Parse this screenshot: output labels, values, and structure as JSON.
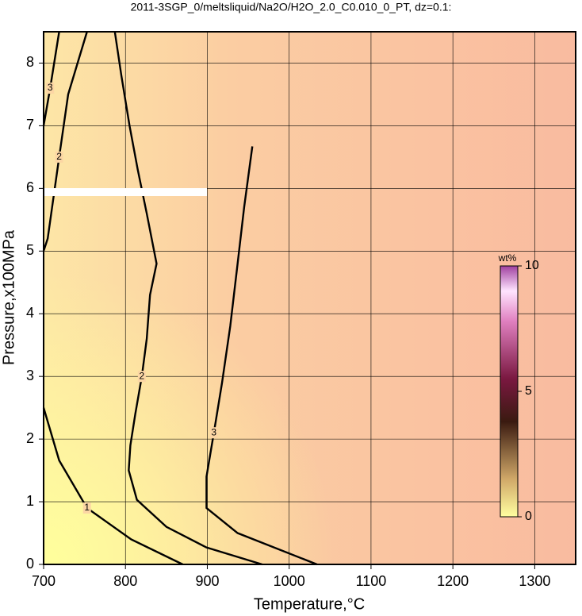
{
  "chart_data": {
    "type": "contour",
    "title": "2011-3SGP_0/meltsliquid/Na2O/H2O_2.0_C0.010_0_PT, dz=0.1:",
    "x_label": "Temperature,°C",
    "y_label": "Pressure,x100MPa",
    "xlim": [
      700,
      1350
    ],
    "ylim": [
      0,
      8.5
    ],
    "xticks": [
      700,
      800,
      900,
      1000,
      1100,
      1200,
      1300
    ],
    "yticks": [
      0,
      1,
      2,
      3,
      4,
      5,
      6,
      7,
      8
    ],
    "grid": true,
    "contours": [
      {
        "level": 1,
        "x": [
          700,
          719,
          753,
          807,
          870
        ],
        "y": [
          2.5,
          1.66,
          0.9,
          0.4,
          0
        ]
      },
      {
        "level": 2,
        "x": [
          753,
          730,
          719,
          705,
          700
        ],
        "y": [
          8.5,
          7.5,
          6.5,
          5.2,
          5.0
        ]
      },
      {
        "level": 2,
        "x": [
          787,
          795,
          805,
          815,
          826,
          838,
          830,
          826,
          820,
          812,
          806,
          804,
          814,
          850,
          899,
          967
        ],
        "y": [
          8.5,
          7.8,
          7.0,
          6.3,
          5.6,
          4.8,
          4.3,
          3.6,
          3.0,
          2.4,
          1.9,
          1.5,
          1.03,
          0.6,
          0.27,
          0
        ]
      },
      {
        "level": 3,
        "x": [
          719,
          708,
          700
        ],
        "y": [
          8.5,
          7.6,
          7.0
        ]
      },
      {
        "level": 3,
        "x": [
          955,
          945,
          937,
          928,
          918,
          908,
          899,
          899,
          937,
          1034
        ],
        "y": [
          6.67,
          5.7,
          4.8,
          3.8,
          2.9,
          2.1,
          1.4,
          0.9,
          0.5,
          0
        ]
      }
    ],
    "colorbar": {
      "label": "wt%",
      "lim": [
        0,
        10
      ],
      "ticks": [
        0,
        5,
        10
      ]
    }
  }
}
